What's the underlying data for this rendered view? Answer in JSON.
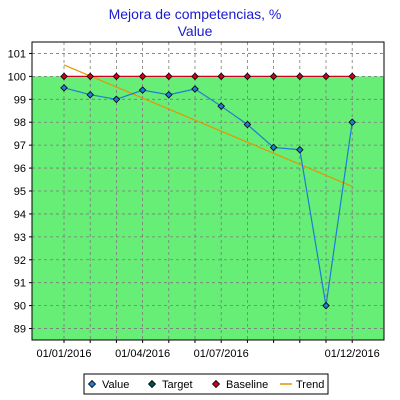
{
  "chart_data": {
    "type": "line",
    "title": "Mejora de competencias, %",
    "subtitle": "Value",
    "ylim": [
      88.5,
      101.5
    ],
    "yticks": [
      89,
      90,
      91,
      92,
      93,
      94,
      95,
      96,
      97,
      98,
      99,
      100,
      101
    ],
    "x_points": 12,
    "xtick_labels": [
      {
        "index": 0,
        "label": "01/01/2016"
      },
      {
        "index": 3,
        "label": "01/04/2016"
      },
      {
        "index": 6,
        "label": "01/07/2016"
      },
      {
        "index": 11,
        "label": "01/12/2016"
      }
    ],
    "grid": true,
    "target_zone": {
      "from": 88.5,
      "to": 100,
      "color": "#66ee77"
    },
    "series": [
      {
        "name": "Value",
        "kind": "line+diamond",
        "color": "#1f7bd6",
        "values": [
          99.5,
          99.2,
          99.0,
          99.4,
          99.2,
          99.45,
          98.7,
          97.9,
          96.9,
          96.8,
          90.0,
          98.0
        ]
      },
      {
        "name": "Target",
        "kind": "diamond",
        "color": "#005050",
        "values": []
      },
      {
        "name": "Baseline",
        "kind": "line+diamond",
        "color": "#cc0020",
        "values": [
          100,
          100,
          100,
          100,
          100,
          100,
          100,
          100,
          100,
          100,
          100,
          100
        ]
      },
      {
        "name": "Trend",
        "kind": "line",
        "color": "#e69500",
        "start": 100.5,
        "end": 95.2
      }
    ],
    "legend": {
      "position": "bottom",
      "items": [
        {
          "label": "Value",
          "marker": "diamond",
          "color": "#1f7bd6"
        },
        {
          "label": "Target",
          "marker": "diamond",
          "color": "#005050"
        },
        {
          "label": "Baseline",
          "marker": "diamond",
          "color": "#cc0020"
        },
        {
          "label": "Trend",
          "marker": "line",
          "color": "#e69500"
        }
      ]
    }
  }
}
